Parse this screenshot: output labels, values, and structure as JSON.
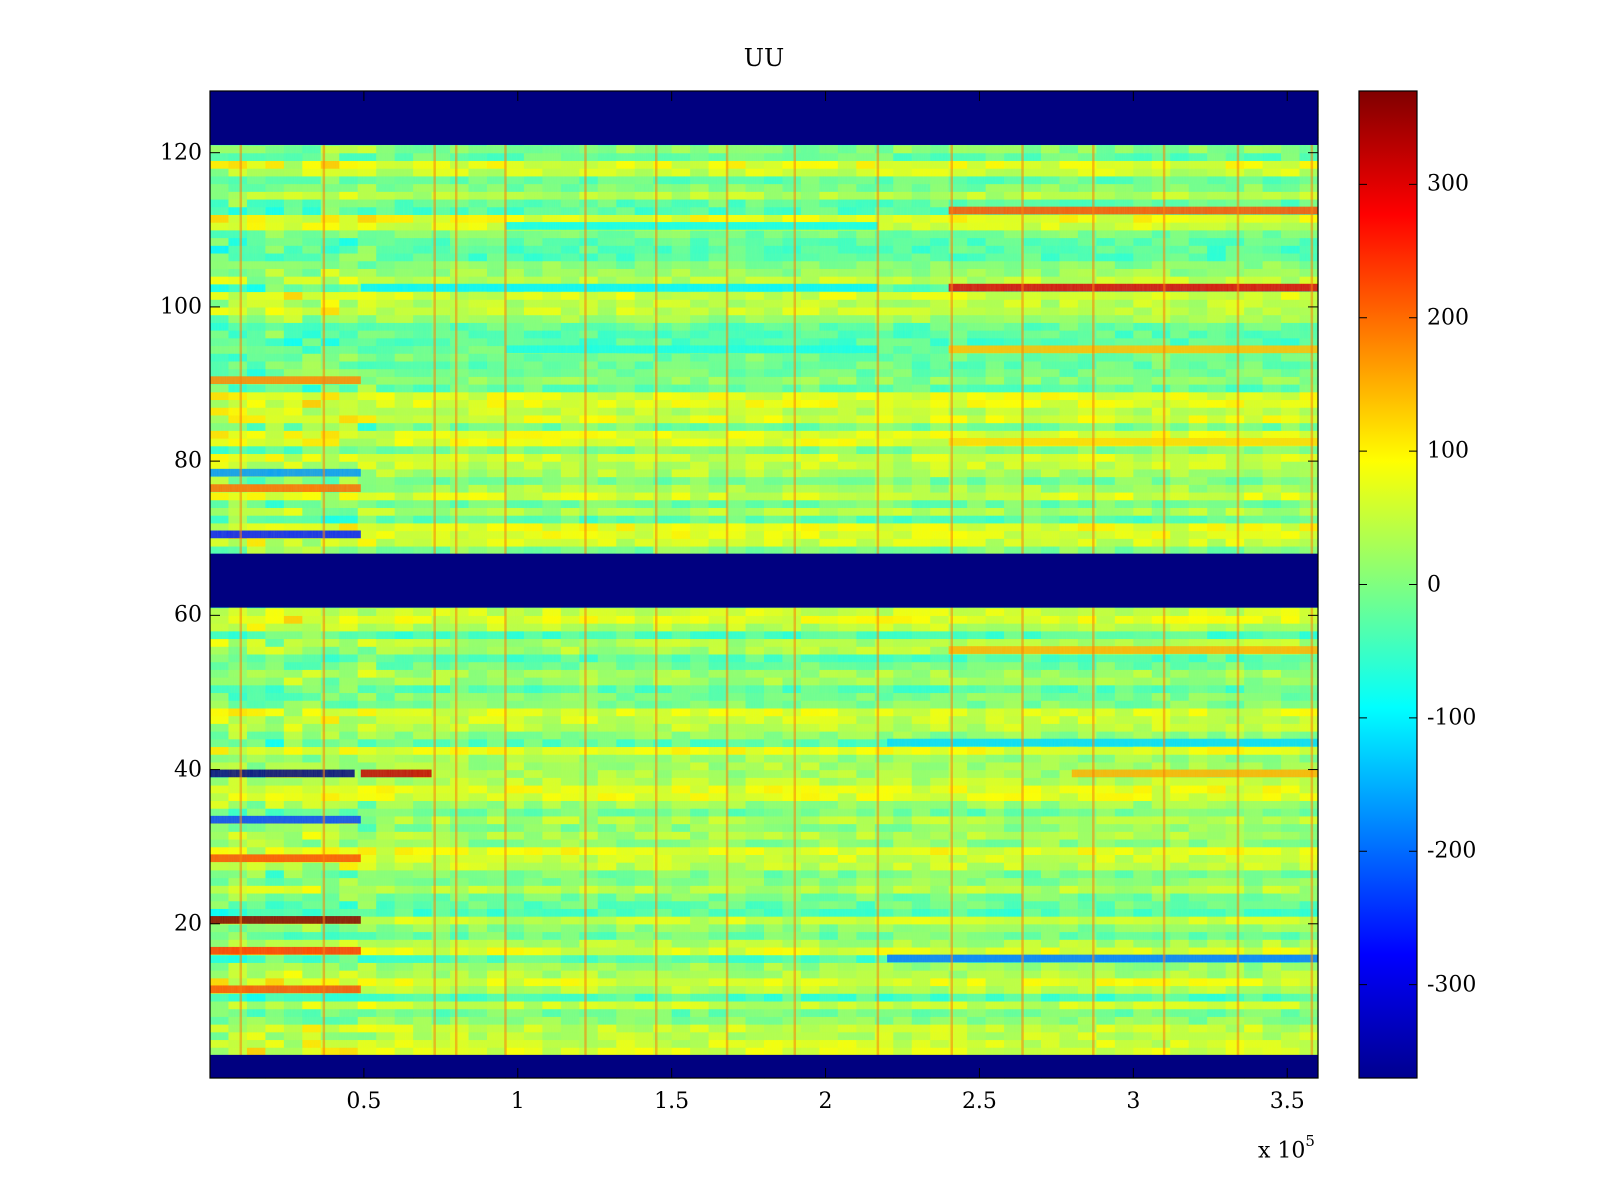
{
  "chart_data": {
    "type": "heatmap",
    "title": "UU",
    "xlabel": "",
    "ylabel": "",
    "x_exponent_label": "x 10",
    "x_exponent_power": "5",
    "xlim": [
      0,
      3.6
    ],
    "ylim": [
      0,
      128
    ],
    "x_ticks": [
      {
        "value": 0.5,
        "label": "0.5"
      },
      {
        "value": 1,
        "label": "1"
      },
      {
        "value": 1.5,
        "label": "1.5"
      },
      {
        "value": 2,
        "label": "2"
      },
      {
        "value": 2.5,
        "label": "2.5"
      },
      {
        "value": 3,
        "label": "3"
      },
      {
        "value": 3.5,
        "label": "3.5"
      }
    ],
    "y_ticks": [
      {
        "value": 20,
        "label": "20"
      },
      {
        "value": 40,
        "label": "40"
      },
      {
        "value": 60,
        "label": "60"
      },
      {
        "value": 80,
        "label": "80"
      },
      {
        "value": 100,
        "label": "100"
      },
      {
        "value": 120,
        "label": "120"
      }
    ],
    "colorbar": {
      "colormap": "jet",
      "range": [
        -370,
        370
      ],
      "ticks": [
        {
          "value": 300,
          "label": "300"
        },
        {
          "value": 200,
          "label": "200"
        },
        {
          "value": 100,
          "label": "100"
        },
        {
          "value": 0,
          "label": "0"
        },
        {
          "value": -100,
          "label": "-100"
        },
        {
          "value": -200,
          "label": "-200"
        },
        {
          "value": -300,
          "label": "-300"
        }
      ]
    },
    "missing_row_bands": [
      {
        "y_range": [
          0,
          3
        ],
        "value": -370
      },
      {
        "y_range": [
          61,
          68
        ],
        "value": -370
      },
      {
        "y_range": [
          121,
          128
        ],
        "value": -370
      }
    ],
    "vertical_event_x": [
      0.1,
      0.37,
      0.73,
      0.8,
      0.96,
      1.22,
      1.45,
      1.68,
      1.9,
      2.17,
      2.41,
      2.64,
      2.87,
      3.1,
      3.34,
      3.58
    ],
    "row_features": [
      {
        "y": 102,
        "x_range": [
          0.49,
          2.17
        ],
        "value": -100
      },
      {
        "y": 102,
        "x_range": [
          2.4,
          3.6
        ],
        "value": 300
      },
      {
        "y": 112,
        "x_range": [
          2.4,
          3.6
        ],
        "value": 220
      },
      {
        "y": 110,
        "x_range": [
          0.96,
          2.17
        ],
        "value": -90
      },
      {
        "y": 94,
        "x_range": [
          0.96,
          2.17
        ],
        "value": -80
      },
      {
        "y": 94,
        "x_range": [
          2.4,
          3.6
        ],
        "value": 140
      },
      {
        "y": 82,
        "x_range": [
          2.4,
          3.6
        ],
        "value": 120
      },
      {
        "y": 90,
        "x_range": [
          0,
          0.49
        ],
        "value": 180
      },
      {
        "y": 78,
        "x_range": [
          0,
          0.49
        ],
        "value": -170
      },
      {
        "y": 76,
        "x_range": [
          0,
          0.49
        ],
        "value": 200
      },
      {
        "y": 70,
        "x_range": [
          0,
          0.49
        ],
        "value": -260
      },
      {
        "y": 39,
        "x_range": [
          0,
          0.47
        ],
        "value": -370
      },
      {
        "y": 39,
        "x_range": [
          0.49,
          0.72
        ],
        "value": 320
      },
      {
        "y": 33,
        "x_range": [
          0,
          0.49
        ],
        "value": -230
      },
      {
        "y": 28,
        "x_range": [
          0,
          0.49
        ],
        "value": 220
      },
      {
        "y": 20,
        "x_range": [
          0,
          0.49
        ],
        "value": 370
      },
      {
        "y": 16,
        "x_range": [
          0,
          0.49
        ],
        "value": 240
      },
      {
        "y": 11,
        "x_range": [
          0,
          0.49
        ],
        "value": 220
      },
      {
        "y": 15,
        "x_range": [
          2.2,
          3.6
        ],
        "value": -190
      },
      {
        "y": 43,
        "x_range": [
          2.2,
          3.6
        ],
        "value": -120
      },
      {
        "y": 55,
        "x_range": [
          2.4,
          3.6
        ],
        "value": 150
      },
      {
        "y": 39,
        "x_range": [
          2.8,
          3.6
        ],
        "value": 150
      }
    ]
  }
}
